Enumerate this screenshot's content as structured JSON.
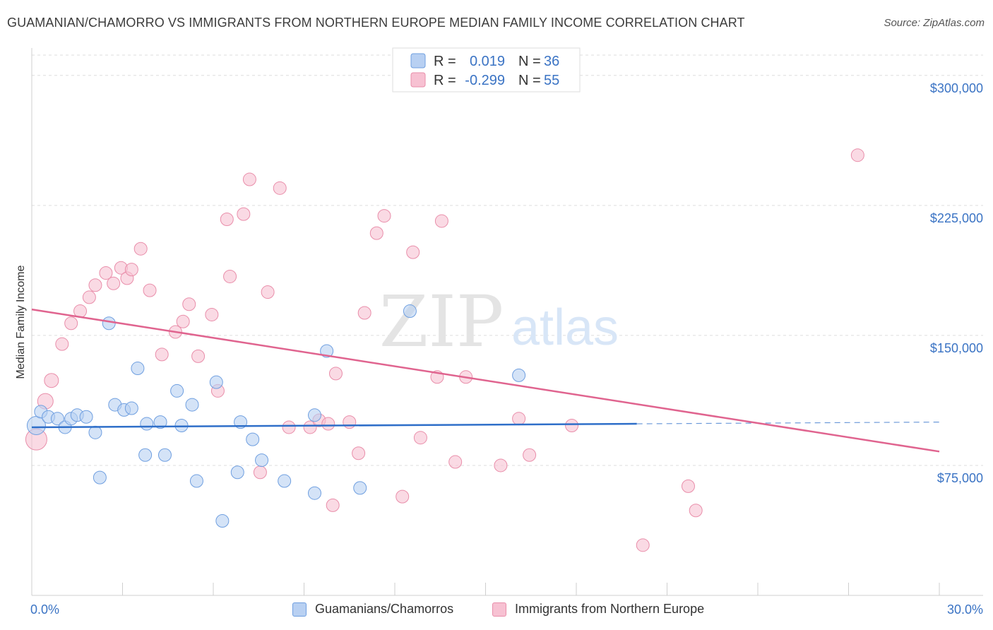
{
  "header": {
    "title": "GUAMANIAN/CHAMORRO VS IMMIGRANTS FROM NORTHERN EUROPE MEDIAN FAMILY INCOME CORRELATION CHART",
    "source": "Source: ZipAtlas.com"
  },
  "watermark": {
    "zip": "ZIP",
    "atlas": "atlas"
  },
  "legend": {
    "rows": [
      {
        "r_label": "R =",
        "r_value": "0.019",
        "n_label": "N =",
        "n_value": "36"
      },
      {
        "r_label": "R =",
        "r_value": "-0.299",
        "n_label": "N =",
        "n_value": "55"
      }
    ]
  },
  "colors": {
    "blue_fill": "#b8d0f2",
    "blue_stroke": "#6f9fe0",
    "blue_line": "#2f6fc9",
    "pink_fill": "#f7c1d2",
    "pink_stroke": "#e98eaa",
    "pink_line": "#e0648f",
    "axis_text": "#3a73c4"
  },
  "chart_data": {
    "type": "scatter",
    "title": "GUAMANIAN/CHAMORRO VS IMMIGRANTS FROM NORTHERN EUROPE MEDIAN FAMILY INCOME CORRELATION CHART",
    "xlabel": "",
    "ylabel": "Median Family Income",
    "xlim": [
      0,
      30
    ],
    "ylim": [
      0,
      315000
    ],
    "x_tick_labels": [
      "0.0%",
      "30.0%"
    ],
    "y_ticks": [
      75000,
      150000,
      225000,
      300000
    ],
    "y_tick_labels": [
      "$75,000",
      "$150,000",
      "$225,000",
      "$300,000"
    ],
    "grid": true,
    "legend_position": "top-center",
    "series": [
      {
        "name": "Guamanians/Chamorros",
        "color": "#6f9fe0",
        "trend": {
          "x": [
            0,
            20
          ],
          "y": [
            97000,
            99000
          ],
          "dashed_to": 30,
          "dashed_y": 100000
        },
        "points": [
          [
            0.15,
            98000,
            26
          ],
          [
            0.3,
            106000,
            18
          ],
          [
            0.55,
            103000,
            18
          ],
          [
            0.85,
            102000,
            18
          ],
          [
            1.1,
            97000,
            18
          ],
          [
            1.3,
            102000,
            18
          ],
          [
            1.5,
            104000,
            18
          ],
          [
            1.8,
            103000,
            18
          ],
          [
            2.1,
            94000,
            18
          ],
          [
            2.25,
            68000,
            18
          ],
          [
            2.55,
            157000,
            18
          ],
          [
            2.75,
            110000,
            18
          ],
          [
            3.05,
            107000,
            18
          ],
          [
            3.3,
            108000,
            18
          ],
          [
            3.5,
            131000,
            18
          ],
          [
            3.8,
            99000,
            18
          ],
          [
            3.75,
            81000,
            18
          ],
          [
            4.25,
            100000,
            18
          ],
          [
            4.4,
            81000,
            18
          ],
          [
            4.95,
            98000,
            18
          ],
          [
            4.8,
            118000,
            18
          ],
          [
            5.3,
            110000,
            18
          ],
          [
            5.45,
            66000,
            18
          ],
          [
            6.1,
            123000,
            18
          ],
          [
            6.3,
            43000,
            18
          ],
          [
            6.8,
            71000,
            18
          ],
          [
            6.9,
            100000,
            18
          ],
          [
            7.3,
            90000,
            18
          ],
          [
            7.6,
            78000,
            18
          ],
          [
            8.35,
            66000,
            18
          ],
          [
            9.35,
            104000,
            18
          ],
          [
            9.35,
            59000,
            18
          ],
          [
            9.75,
            141000,
            18
          ],
          [
            10.85,
            62000,
            18
          ],
          [
            12.5,
            164000,
            18
          ],
          [
            16.1,
            127000,
            18
          ]
        ]
      },
      {
        "name": "Immigrants from Northern Europe",
        "color": "#e98eaa",
        "trend": {
          "x": [
            0,
            30
          ],
          "y": [
            165000,
            83000
          ]
        },
        "points": [
          [
            0.15,
            90000,
            30
          ],
          [
            0.45,
            112000,
            22
          ],
          [
            0.65,
            124000,
            20
          ],
          [
            1.0,
            145000,
            18
          ],
          [
            1.3,
            157000,
            18
          ],
          [
            1.6,
            164000,
            18
          ],
          [
            1.9,
            172000,
            18
          ],
          [
            2.1,
            179000,
            18
          ],
          [
            2.45,
            186000,
            18
          ],
          [
            2.7,
            180000,
            18
          ],
          [
            2.95,
            189000,
            18
          ],
          [
            3.15,
            183000,
            18
          ],
          [
            3.3,
            188000,
            18
          ],
          [
            3.6,
            200000,
            18
          ],
          [
            3.9,
            176000,
            18
          ],
          [
            4.3,
            139000,
            18
          ],
          [
            4.75,
            152000,
            18
          ],
          [
            5.0,
            158000,
            18
          ],
          [
            5.2,
            168000,
            18
          ],
          [
            5.5,
            138000,
            18
          ],
          [
            5.95,
            162000,
            18
          ],
          [
            6.15,
            118000,
            18
          ],
          [
            6.45,
            217000,
            18
          ],
          [
            6.55,
            184000,
            18
          ],
          [
            7.0,
            220000,
            18
          ],
          [
            7.2,
            240000,
            18
          ],
          [
            7.55,
            71000,
            18
          ],
          [
            7.8,
            175000,
            18
          ],
          [
            8.2,
            235000,
            18
          ],
          [
            8.5,
            97000,
            18
          ],
          [
            9.2,
            97000,
            18
          ],
          [
            9.5,
            101000,
            18
          ],
          [
            9.8,
            99000,
            18
          ],
          [
            9.95,
            52000,
            18
          ],
          [
            10.05,
            128000,
            18
          ],
          [
            10.5,
            100000,
            18
          ],
          [
            10.8,
            82000,
            18
          ],
          [
            11.0,
            163000,
            18
          ],
          [
            11.4,
            209000,
            18
          ],
          [
            11.65,
            219000,
            18
          ],
          [
            12.25,
            57000,
            18
          ],
          [
            12.6,
            198000,
            18
          ],
          [
            12.85,
            91000,
            18
          ],
          [
            13.4,
            126000,
            18
          ],
          [
            13.55,
            216000,
            18
          ],
          [
            14.0,
            77000,
            18
          ],
          [
            14.35,
            126000,
            18
          ],
          [
            15.5,
            75000,
            18
          ],
          [
            16.1,
            102000,
            18
          ],
          [
            16.45,
            81000,
            18
          ],
          [
            17.85,
            98000,
            18
          ],
          [
            20.2,
            29000,
            18
          ],
          [
            21.7,
            63000,
            18
          ],
          [
            21.95,
            49000,
            18
          ],
          [
            27.3,
            254000,
            18
          ]
        ]
      }
    ]
  }
}
